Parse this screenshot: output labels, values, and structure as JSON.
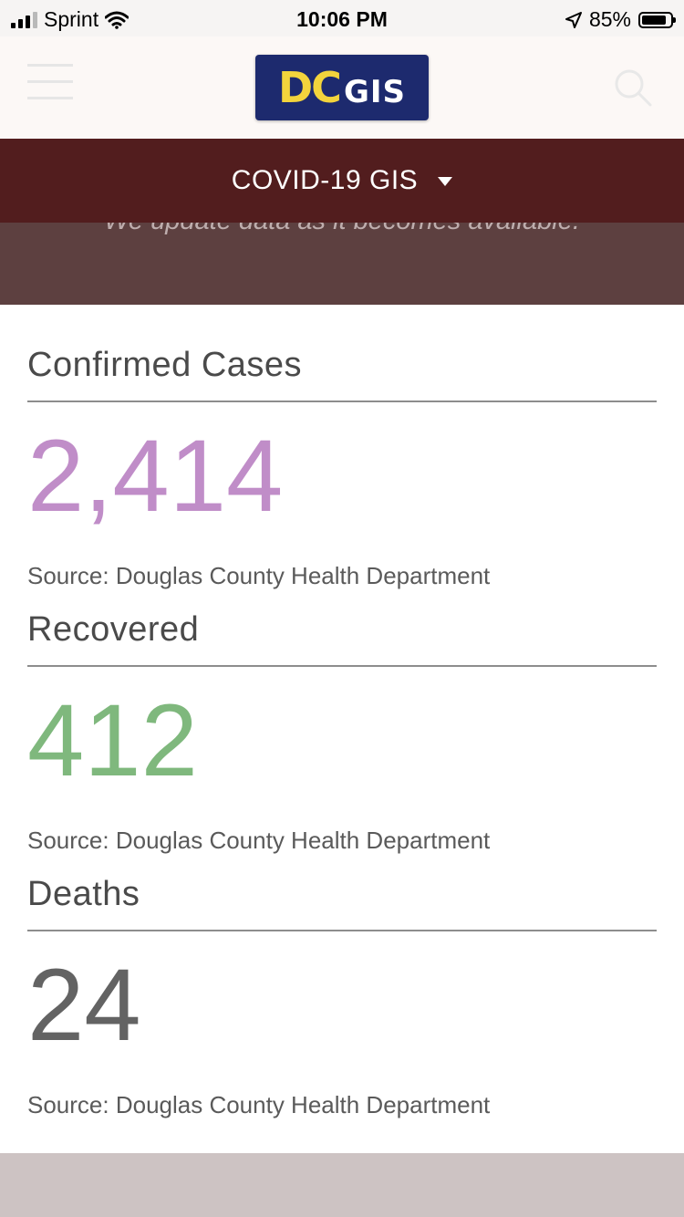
{
  "status_bar": {
    "carrier": "Sprint",
    "time": "10:06 PM",
    "battery_percent": "85%",
    "battery_level": 0.85,
    "signal_bars": 3,
    "icons": [
      "signal-icon",
      "wifi-icon",
      "location-arrow-icon",
      "battery-icon"
    ]
  },
  "header": {
    "logo_dc": "DC",
    "logo_gis": "GIS",
    "icons": [
      "hamburger-menu-icon",
      "search-icon"
    ]
  },
  "nav": {
    "title": "COVID-19 GIS",
    "dropdown_icon": "caret-down-icon"
  },
  "hero": {
    "tagline": "We update data as it becomes available."
  },
  "stats": [
    {
      "label": "Confirmed Cases",
      "value": "2,414",
      "color": "#c08dc8",
      "source": "Source: Douglas County Health Department"
    },
    {
      "label": "Recovered",
      "value": "412",
      "color": "#7fb87d",
      "source": "Source: Douglas County Health Department"
    },
    {
      "label": "Deaths",
      "value": "24",
      "color": "#636363",
      "source": "Source: Douglas County Health Department"
    }
  ],
  "colors": {
    "nav_band": "#521d1e",
    "hero_band": "#5d4040",
    "footer": "#cdc3c3"
  }
}
